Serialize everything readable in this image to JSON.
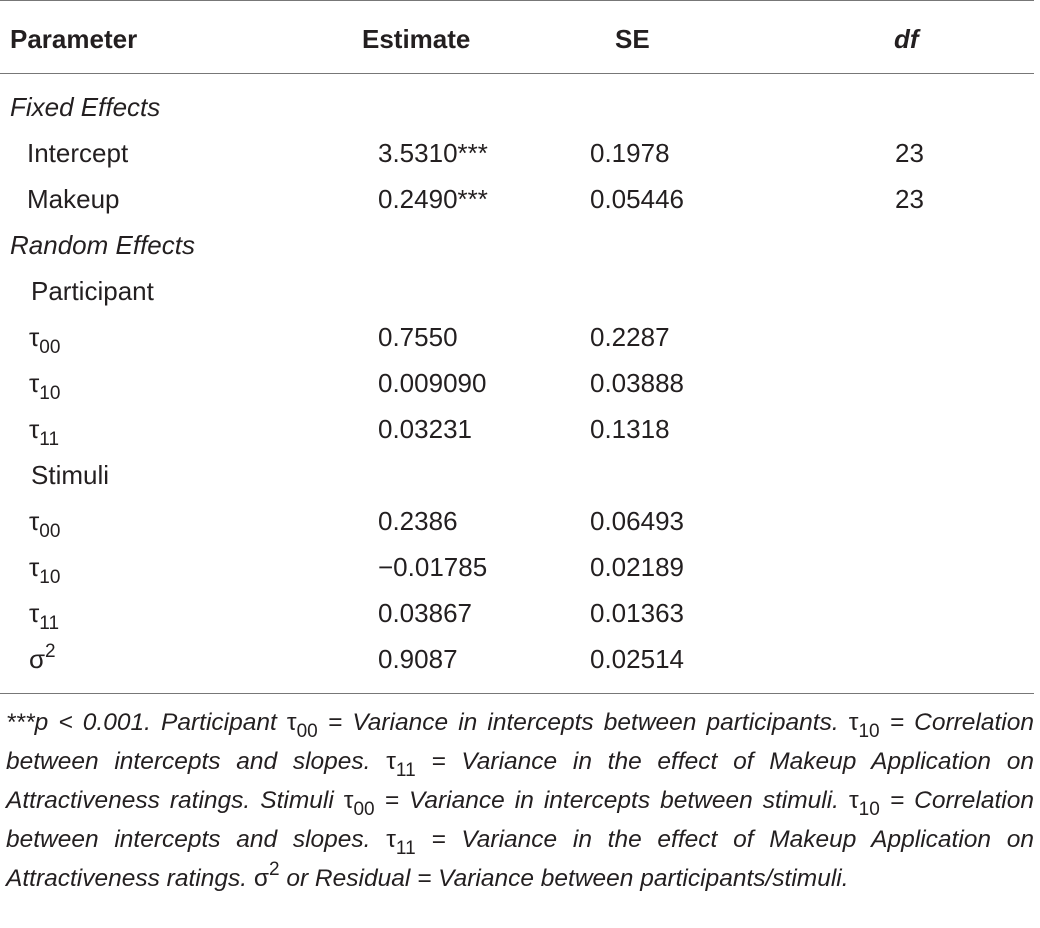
{
  "table": {
    "header": [
      "Parameter",
      "Estimate",
      "SE",
      "df"
    ],
    "fixed_effects": {
      "title": "Fixed Effects",
      "rows": [
        {
          "parameter": "Intercept",
          "estimate": "3.5310***",
          "se": "0.1978",
          "df": "23"
        },
        {
          "parameter": "Makeup",
          "estimate": "0.2490***",
          "se": "0.05446",
          "df": "23"
        }
      ]
    },
    "random_effects": {
      "title": "Random Effects",
      "groups": [
        {
          "title": "Participant",
          "rows": [
            {
              "parameter": {
                "symbol": "τ",
                "sub": "00"
              },
              "estimate": "0.7550",
              "se": "0.2287"
            },
            {
              "parameter": {
                "symbol": "τ",
                "sub": "10"
              },
              "estimate": "0.009090",
              "se": "0.03888"
            },
            {
              "parameter": {
                "symbol": "τ",
                "sub": "11"
              },
              "estimate": "0.03231",
              "se": "0.1318"
            }
          ]
        },
        {
          "title": "Stimuli",
          "rows": [
            {
              "parameter": {
                "symbol": "τ",
                "sub": "00"
              },
              "estimate": "0.2386",
              "se": "0.06493"
            },
            {
              "parameter": {
                "symbol": "τ",
                "sub": "10"
              },
              "estimate": "−0.01785",
              "se": "0.02189"
            },
            {
              "parameter": {
                "symbol": "τ",
                "sub": "11"
              },
              "estimate": "0.03867",
              "se": "0.01363"
            },
            {
              "parameter": {
                "symbol": "σ",
                "sup": "2"
              },
              "estimate": "0.9087",
              "se": "0.02514"
            }
          ]
        }
      ]
    },
    "footnote": [
      {
        "text": "***p < 0.001. Participant ",
        "style": "italic"
      },
      {
        "text": "τ",
        "style": "plain"
      },
      {
        "text": "00",
        "style": "sub"
      },
      {
        "text": " = Variance in intercepts between participants. ",
        "style": "italic"
      },
      {
        "text": "τ",
        "style": "plain"
      },
      {
        "text": "10",
        "style": "sub"
      },
      {
        "text": " = Correlation between intercepts and slopes. ",
        "style": "italic"
      },
      {
        "text": "τ",
        "style": "plain"
      },
      {
        "text": "11",
        "style": "sub"
      },
      {
        "text": " = Variance in the effect of Makeup Application on Attractiveness ratings. Stimuli ",
        "style": "italic"
      },
      {
        "text": "τ",
        "style": "plain"
      },
      {
        "text": "00",
        "style": "sub"
      },
      {
        "text": " = Variance in intercepts between stimuli. ",
        "style": "italic"
      },
      {
        "text": "τ",
        "style": "plain"
      },
      {
        "text": "10",
        "style": "sub"
      },
      {
        "text": " = Correlation between intercepts and slopes. ",
        "style": "italic"
      },
      {
        "text": "τ",
        "style": "plain"
      },
      {
        "text": "11",
        "style": "sub"
      },
      {
        "text": " = Variance in the effect of Makeup Application on Attractiveness ratings. ",
        "style": "italic"
      },
      {
        "text": "σ",
        "style": "plain"
      },
      {
        "text": "2",
        "style": "sup"
      },
      {
        "text": " or Residual = Variance between participants/stimuli.",
        "style": "italic"
      }
    ]
  }
}
